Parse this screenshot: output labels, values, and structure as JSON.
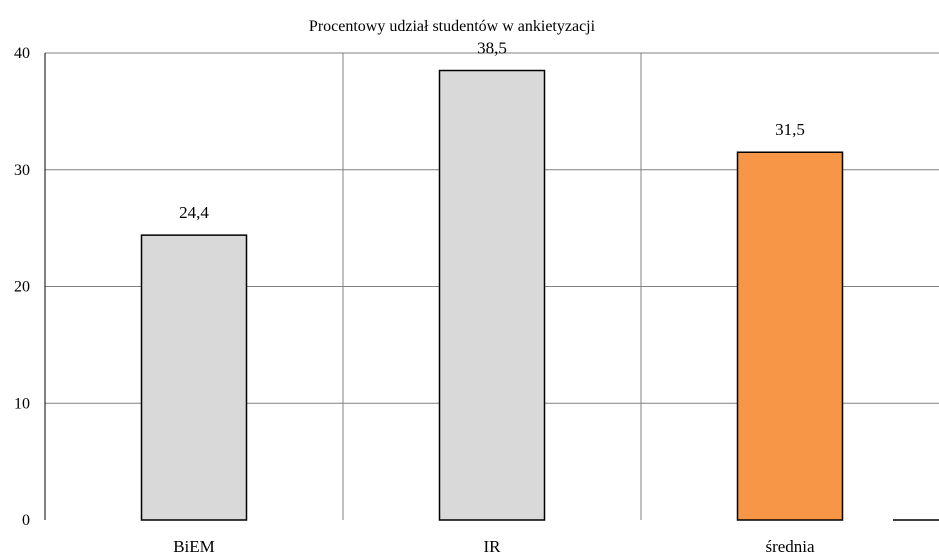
{
  "chart_data": {
    "type": "bar",
    "title": "Procentowy udział studentów w ankietyzacji",
    "xlabel": "",
    "ylabel": "",
    "categories": [
      "BiEM",
      "IR",
      "średnia"
    ],
    "values": [
      24.4,
      38.5,
      31.5
    ],
    "value_labels": [
      "24,4",
      "38,5",
      "31,5"
    ],
    "bar_colors": [
      "#d9d9d9",
      "#d9d9d9",
      "#f79646"
    ],
    "ylim": [
      0,
      40
    ],
    "yticks": [
      0,
      10,
      20,
      30,
      40
    ],
    "ytick_labels": [
      "0",
      "10",
      "20",
      "30",
      "40"
    ],
    "grid": true,
    "legend": "none"
  }
}
